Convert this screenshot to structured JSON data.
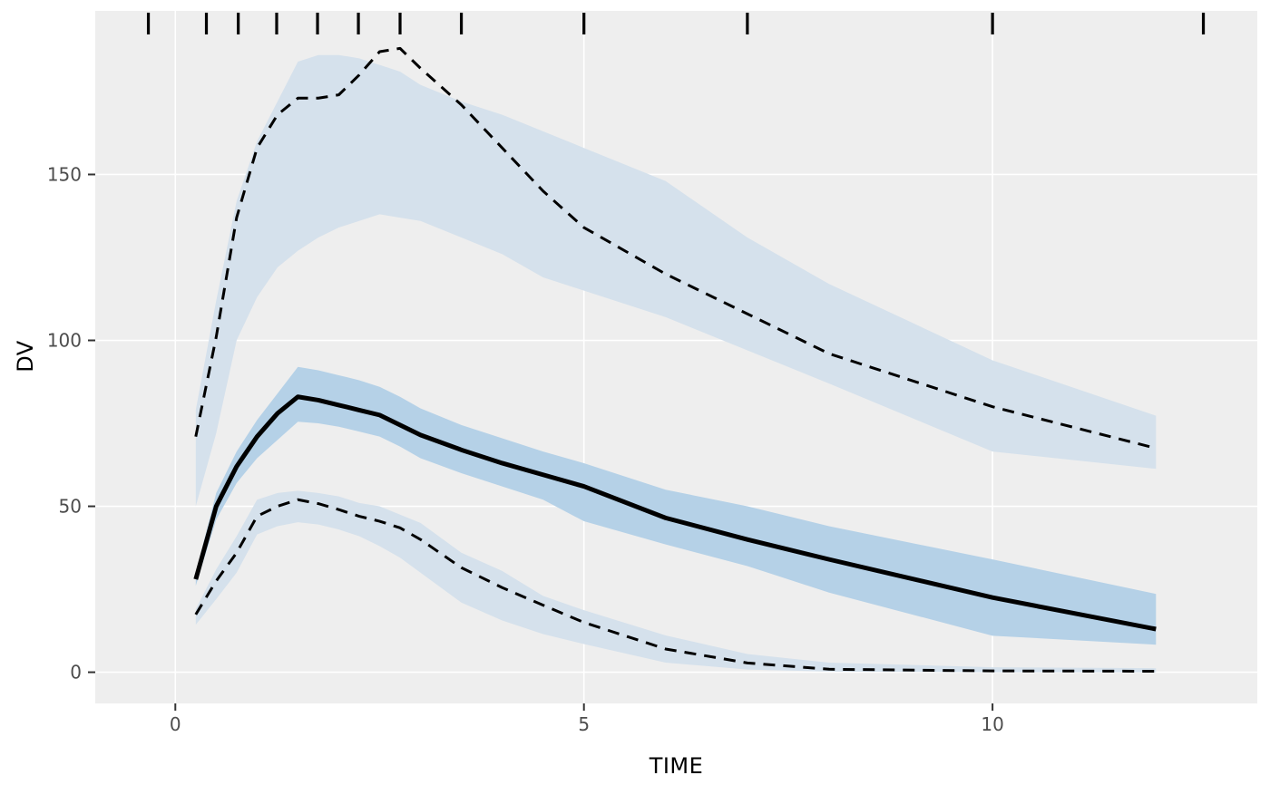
{
  "chart_data": {
    "type": "area",
    "title": "",
    "xlabel": "TIME",
    "ylabel": "DV",
    "x_ticks": [
      0,
      5,
      10
    ],
    "y_ticks": [
      0,
      50,
      100,
      150
    ],
    "xlim": [
      -0.98,
      13.24
    ],
    "ylim": [
      -9.4,
      199.3
    ],
    "grid": "major gridlines only, white on gray panel",
    "legend": "none",
    "rug_times_top": [
      -0.33,
      0.38,
      0.77,
      1.24,
      1.74,
      2.24,
      2.75,
      3.5,
      5.0,
      7.0,
      10.0,
      12.58
    ],
    "time": [
      0.25,
      0.5,
      0.75,
      1,
      1.25,
      1.5,
      1.75,
      2,
      2.25,
      2.5,
      2.75,
      3,
      3.5,
      4,
      4.5,
      5,
      6,
      7,
      8,
      10,
      12
    ],
    "series": [
      {
        "name": "p95_interval_band",
        "role": "ribbon",
        "color": "#D5E1EC",
        "hi": [
          79,
          112,
          142,
          160,
          172,
          184,
          186,
          186,
          185,
          183,
          181,
          177,
          172,
          168,
          163,
          158,
          148,
          131,
          117,
          94,
          77.3
        ],
        "lo": [
          50,
          72,
          100,
          113,
          122,
          127,
          131,
          134,
          136,
          138,
          137,
          136,
          131,
          126,
          119,
          115,
          107,
          97,
          87,
          66.5,
          61.3
        ]
      },
      {
        "name": "p5_interval_band",
        "role": "ribbon",
        "color": "#D5E1EC",
        "hi": [
          19,
          31,
          41,
          52,
          54,
          54.7,
          54,
          53,
          51,
          50,
          47.5,
          45,
          36,
          30.5,
          23,
          18.7,
          11.1,
          5.5,
          2.9,
          1.5,
          1.2
        ],
        "lo": [
          14.3,
          22,
          30,
          41.5,
          44,
          45.2,
          44.5,
          43,
          41,
          38,
          34.5,
          30,
          21,
          15.6,
          11.5,
          8.5,
          2.9,
          0.8,
          0.2,
          0,
          0
        ]
      },
      {
        "name": "median_interval_band",
        "role": "ribbon",
        "color": "#B5D1E7",
        "hi": [
          30,
          54,
          66.5,
          76,
          84,
          92,
          91,
          89.5,
          88,
          86,
          83,
          79.5,
          74.5,
          70.5,
          66.5,
          63,
          55,
          50,
          44,
          34,
          23.6
        ],
        "lo": [
          26,
          46,
          57,
          64.5,
          70,
          75.5,
          75,
          74,
          72.5,
          71,
          68,
          64.5,
          60,
          56,
          52,
          45.5,
          38.5,
          32,
          24,
          11,
          8.3
        ]
      },
      {
        "name": "p95_line",
        "role": "line",
        "style": "dashed",
        "color": "#000000",
        "width": 3,
        "values": [
          71,
          101,
          137,
          158,
          168,
          173,
          173,
          174,
          180,
          187,
          188,
          182,
          171,
          158,
          145,
          134,
          120,
          108,
          96,
          80,
          67.5
        ]
      },
      {
        "name": "p5_line",
        "role": "line",
        "style": "dashed",
        "color": "#000000",
        "width": 3,
        "values": [
          17.4,
          27.5,
          36,
          47,
          50,
          52,
          50.8,
          49,
          47,
          45.5,
          43.5,
          40,
          31.5,
          25.5,
          20.2,
          15,
          7,
          2.8,
          0.9,
          0.4,
          0.3
        ]
      },
      {
        "name": "median_line",
        "role": "line",
        "style": "solid",
        "color": "#000000",
        "width": 5,
        "values": [
          28,
          50,
          62,
          71,
          78,
          83,
          82,
          80.5,
          79,
          77.5,
          74.5,
          71.5,
          67,
          63,
          59.5,
          56,
          46.5,
          40,
          34,
          22.5,
          13
        ]
      }
    ],
    "colors": {
      "panel_bg": "#EEEEEE",
      "gridline": "#FFFFFF",
      "axis_text": "#4D4D4D",
      "axis_title": "#000000",
      "tick_mark": "#333333",
      "rug": "#000000",
      "outer_bg": "#FFFFFF"
    }
  }
}
